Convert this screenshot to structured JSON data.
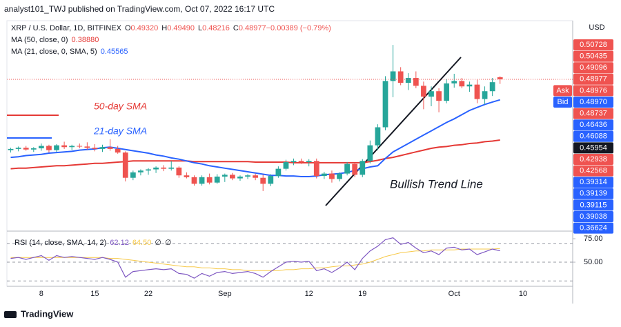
{
  "header": {
    "publisher": "analyst101_TWJ published on TradingView.com, Oct 07, 2022 16:17 UTC",
    "brand": "TradingView"
  },
  "chart_data": {
    "type": "candlestick",
    "legend": {
      "symbol": "XRP / U.S. Dollar, 1D, BITFINEX",
      "items": [
        {
          "key": "O",
          "label": "0.49320"
        },
        {
          "key": "H",
          "label": "0.49490"
        },
        {
          "key": "L",
          "label": "0.48216"
        },
        {
          "key": "C",
          "label": "0.48977"
        },
        {
          "key": "",
          "label": "−0.00389 (−0.79%)"
        }
      ]
    },
    "categories": [
      null,
      null,
      null,
      null,
      "8",
      null,
      null,
      null,
      null,
      null,
      null,
      "15",
      null,
      null,
      null,
      null,
      null,
      null,
      "22",
      null,
      null,
      null,
      null,
      null,
      null,
      null,
      null,
      null,
      "Sep",
      null,
      null,
      null,
      null,
      null,
      null,
      null,
      null,
      null,
      null,
      "12",
      null,
      null,
      null,
      null,
      null,
      null,
      "19",
      null,
      null,
      null,
      null,
      null,
      null,
      null,
      null,
      null,
      null,
      null,
      "Oct",
      null,
      null,
      null,
      null,
      null,
      null,
      null,
      null,
      "10",
      null,
      null,
      null,
      null,
      null,
      null
    ],
    "open": [
      0.372,
      0.374,
      0.376,
      0.373,
      0.375,
      0.379,
      0.372,
      0.38,
      0.377,
      0.379,
      0.378,
      0.376,
      0.374,
      0.377,
      0.374,
      0.368,
      0.326,
      0.335,
      0.338,
      0.34,
      0.343,
      0.341,
      0.343,
      0.33,
      0.327,
      0.316,
      0.327,
      0.318,
      0.328,
      0.331,
      0.325,
      0.328,
      0.33,
      0.326,
      0.316,
      0.329,
      0.341,
      0.352,
      0.354,
      0.352,
      0.354,
      0.329,
      0.333,
      0.324,
      0.333,
      0.349,
      0.331,
      0.354,
      0.38,
      0.41,
      0.487,
      0.503,
      0.484,
      0.492,
      0.479,
      0.461,
      0.47,
      0.454,
      0.483,
      0.487,
      0.478,
      0.481,
      0.457,
      0.47,
      0.4932,
      null,
      null,
      null,
      null,
      null,
      null,
      null,
      null,
      null
    ],
    "high": [
      0.376,
      0.378,
      0.379,
      0.377,
      0.383,
      0.381,
      0.382,
      0.386,
      0.381,
      0.383,
      0.385,
      0.382,
      0.381,
      0.39,
      0.379,
      0.37,
      0.338,
      0.34,
      0.342,
      0.345,
      0.347,
      0.354,
      0.345,
      0.335,
      0.33,
      0.33,
      0.333,
      0.332,
      0.333,
      0.334,
      0.33,
      0.332,
      0.333,
      0.331,
      0.332,
      0.345,
      0.356,
      0.358,
      0.358,
      0.357,
      0.358,
      0.336,
      0.338,
      0.335,
      0.352,
      0.351,
      0.357,
      0.388,
      0.415,
      0.495,
      0.547,
      0.51,
      0.5,
      0.503,
      0.486,
      0.478,
      0.475,
      0.49,
      0.499,
      0.492,
      0.486,
      0.49,
      0.478,
      0.492,
      0.4949,
      null,
      null,
      null,
      null,
      null,
      null,
      null,
      null,
      null
    ],
    "low": [
      0.368,
      0.37,
      0.371,
      0.369,
      0.371,
      0.368,
      0.369,
      0.374,
      0.372,
      0.375,
      0.373,
      0.37,
      0.369,
      0.371,
      0.366,
      0.32,
      0.322,
      0.33,
      0.331,
      0.334,
      0.337,
      0.338,
      0.326,
      0.325,
      0.313,
      0.313,
      0.315,
      0.316,
      0.319,
      0.322,
      0.321,
      0.324,
      0.322,
      0.304,
      0.312,
      0.326,
      0.338,
      0.347,
      0.349,
      0.345,
      0.325,
      0.324,
      0.318,
      0.32,
      0.33,
      0.327,
      0.327,
      0.35,
      0.372,
      0.405,
      0.46,
      0.48,
      0.472,
      0.475,
      0.44,
      0.445,
      0.435,
      0.45,
      0.476,
      0.475,
      0.469,
      0.45,
      0.448,
      0.462,
      0.48216,
      null,
      null,
      null,
      null,
      null,
      null,
      null,
      null,
      null
    ],
    "close": [
      0.374,
      0.376,
      0.373,
      0.375,
      0.379,
      0.372,
      0.38,
      0.377,
      0.379,
      0.378,
      0.376,
      0.374,
      0.377,
      0.374,
      0.368,
      0.326,
      0.335,
      0.338,
      0.34,
      0.343,
      0.341,
      0.343,
      0.33,
      0.327,
      0.316,
      0.327,
      0.318,
      0.328,
      0.331,
      0.325,
      0.328,
      0.33,
      0.326,
      0.316,
      0.329,
      0.341,
      0.352,
      0.354,
      0.352,
      0.354,
      0.329,
      0.333,
      0.324,
      0.333,
      0.349,
      0.331,
      0.354,
      0.38,
      0.41,
      0.487,
      0.503,
      0.484,
      0.492,
      0.479,
      0.461,
      0.47,
      0.454,
      0.483,
      0.487,
      0.478,
      0.481,
      0.457,
      0.47,
      0.485,
      0.48977,
      null,
      null,
      null,
      null,
      null,
      null,
      null,
      null,
      null
    ],
    "up_color": "#26a69a",
    "down_color": "#ef5350",
    "ylim": [
      0.2373,
      0.5873
    ],
    "series": [
      {
        "name": "MA (50, close, 0)",
        "color": "#e53935",
        "last_label": "0.38880",
        "values": [
          0.341,
          0.342,
          0.342,
          0.343,
          0.344,
          0.345,
          0.346,
          0.346,
          0.347,
          0.348,
          0.349,
          0.35,
          0.35,
          0.351,
          0.352,
          0.353,
          0.354,
          0.354,
          0.354,
          0.354,
          0.354,
          0.354,
          0.354,
          0.354,
          0.353,
          0.353,
          0.353,
          0.353,
          0.353,
          0.353,
          0.353,
          0.353,
          0.352,
          0.352,
          0.352,
          0.352,
          0.352,
          0.351,
          0.351,
          0.351,
          0.351,
          0.351,
          0.351,
          0.351,
          0.351,
          0.351,
          0.351,
          0.353,
          0.355,
          0.358,
          0.36,
          0.363,
          0.366,
          0.369,
          0.372,
          0.375,
          0.377,
          0.378,
          0.38,
          0.381,
          0.383,
          0.384,
          0.386,
          0.387,
          0.3888,
          null,
          null,
          null,
          null,
          null,
          null,
          null,
          null,
          null
        ]
      },
      {
        "name": "MA (21, close, 0, SMA, 5)",
        "color": "#2962ff",
        "last_label": "0.45565",
        "values": [
          0.36,
          0.361,
          0.363,
          0.364,
          0.365,
          0.367,
          0.368,
          0.369,
          0.37,
          0.372,
          0.373,
          0.374,
          0.376,
          0.377,
          0.375,
          0.373,
          0.371,
          0.369,
          0.367,
          0.364,
          0.362,
          0.359,
          0.357,
          0.354,
          0.351,
          0.349,
          0.346,
          0.344,
          0.342,
          0.34,
          0.338,
          0.336,
          0.334,
          0.332,
          0.33,
          0.33,
          0.329,
          0.329,
          0.328,
          0.328,
          0.329,
          0.331,
          0.332,
          0.333,
          0.335,
          0.338,
          0.341,
          0.344,
          0.346,
          0.358,
          0.369,
          0.376,
          0.383,
          0.39,
          0.397,
          0.404,
          0.411,
          0.418,
          0.424,
          0.431,
          0.438,
          0.443,
          0.448,
          0.452,
          0.45565,
          null,
          null,
          null,
          null,
          null,
          null,
          null,
          null,
          null
        ]
      }
    ],
    "price_labels": [
      {
        "label": "0.50728",
        "color": "#ef5350"
      },
      {
        "label": "0.50435",
        "color": "#ef5350"
      },
      {
        "label": "0.49096",
        "color": "#ef5350"
      },
      {
        "label": "0.48977",
        "color": "#ef5350"
      },
      {
        "label": "0.48976",
        "color": "#ef5350",
        "tag": "Ask"
      },
      {
        "label": "0.48970",
        "color": "#2962ff",
        "tag": "Bid"
      },
      {
        "label": "0.48737",
        "color": "#ef5350"
      },
      {
        "label": "0.46436",
        "color": "#2962ff"
      },
      {
        "label": "0.46088",
        "color": "#2962ff"
      },
      {
        "label": "0.45954",
        "color": "#131722"
      },
      {
        "label": "0.42938",
        "color": "#ef5350"
      },
      {
        "label": "0.42568",
        "color": "#ef5350"
      },
      {
        "label": "0.39314",
        "color": "#2962ff"
      },
      {
        "label": "0.39139",
        "color": "#2962ff"
      },
      {
        "label": "0.39115",
        "color": "#2962ff"
      },
      {
        "label": "0.39038",
        "color": "#2962ff"
      },
      {
        "label": "0.36624",
        "color": "#2962ff"
      }
    ],
    "currency": "USD",
    "annotations": [
      "50-day SMA",
      "21-day SMA",
      "Bullish Trend Line"
    ],
    "rsi": {
      "name": "RSI (14, close, SMA, 14, 2)",
      "last_label": "62.12",
      "ma_label": "64.50",
      "extra": [
        "∅",
        "∅"
      ],
      "color": "#7e57c2",
      "ma_color": "#f7c948",
      "ylim": [
        24.3,
        83.1
      ],
      "yticks": [
        {
          "value": 75,
          "label": "75.00"
        },
        {
          "value": 50,
          "label": "50.00"
        }
      ],
      "levels": [
        70,
        50,
        30
      ],
      "values": [
        54,
        55,
        53,
        55,
        57,
        52,
        57,
        55,
        56,
        55,
        54,
        53,
        55,
        53,
        50,
        34,
        40,
        41,
        42,
        43,
        42,
        43,
        38,
        37,
        33,
        38,
        35,
        39,
        40,
        38,
        39,
        40,
        38,
        34,
        40,
        45,
        50,
        51,
        50,
        51,
        41,
        43,
        39,
        44,
        50,
        42,
        54,
        62,
        67,
        74,
        76,
        69,
        71,
        65,
        60,
        62,
        58,
        65,
        66,
        63,
        64,
        58,
        61,
        64,
        62.12,
        null,
        null,
        null,
        null,
        null,
        null,
        null,
        null,
        null
      ],
      "ma": [
        55,
        55,
        55,
        55,
        55,
        55,
        55,
        55,
        55,
        55,
        55,
        55,
        55,
        54,
        54,
        53,
        52,
        51,
        50,
        49,
        48,
        47,
        46,
        45,
        45,
        44,
        44,
        43,
        43,
        42,
        42,
        41,
        41,
        41,
        41,
        41,
        42,
        42,
        43,
        43,
        44,
        44,
        45,
        46,
        46,
        47,
        48,
        50,
        53,
        56,
        58,
        60,
        61,
        62,
        62,
        63,
        63,
        63,
        63,
        64,
        64,
        64,
        64,
        64,
        64.5,
        null,
        null,
        null,
        null,
        null,
        null,
        null,
        null,
        null
      ]
    }
  }
}
